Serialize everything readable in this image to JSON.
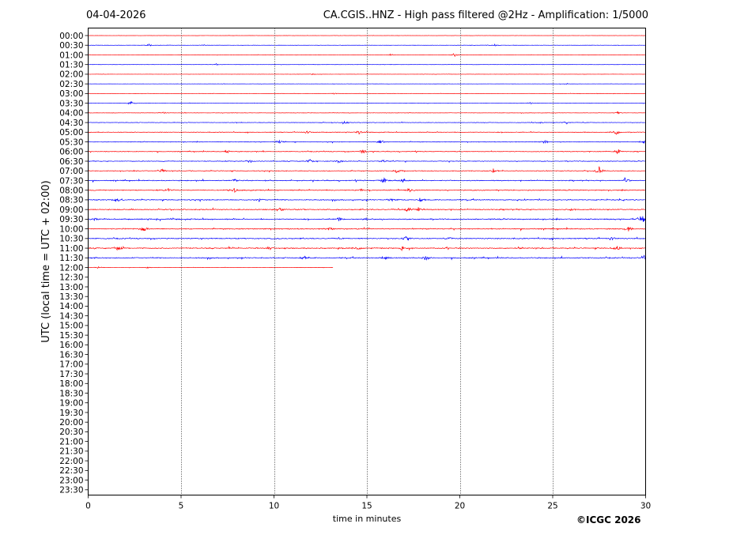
{
  "header": {
    "date": "04-04-2026",
    "title": "CA.CGIS..HNZ - High pass filtered @2Hz - Amplification: 1/5000"
  },
  "footer": {
    "copyright": "©ICGC 2026"
  },
  "chart_data": {
    "type": "helicorder",
    "xlabel": "time in minutes",
    "ylabel": "UTC (local time = UTC + 02:00)",
    "xlim": [
      0,
      30
    ],
    "x_ticks": [
      "0",
      "5",
      "10",
      "15",
      "20",
      "25",
      "30"
    ],
    "x_tick_values": [
      0,
      5,
      10,
      15,
      20,
      25,
      30
    ],
    "grid": "vertical dotted at 5-minute intervals",
    "row_labels": [
      "00:00",
      "00:30",
      "01:00",
      "01:30",
      "02:00",
      "02:30",
      "03:00",
      "03:30",
      "04:00",
      "04:30",
      "05:00",
      "05:30",
      "06:00",
      "06:30",
      "07:00",
      "07:30",
      "08:00",
      "08:30",
      "09:00",
      "09:30",
      "10:00",
      "10:30",
      "11:00",
      "11:30",
      "12:00",
      "12:30",
      "13:00",
      "13:30",
      "14:00",
      "14:30",
      "15:00",
      "15:30",
      "16:00",
      "16:30",
      "17:00",
      "17:30",
      "18:00",
      "18:30",
      "19:00",
      "19:30",
      "20:00",
      "20:30",
      "21:00",
      "21:30",
      "22:00",
      "22:30",
      "23:00",
      "23:30"
    ],
    "trace_colors": [
      "#ff0000",
      "#0000ff"
    ],
    "traces": [
      {
        "row": 0,
        "end_minute": 30,
        "activity": 0.1,
        "events": []
      },
      {
        "row": 1,
        "end_minute": 30,
        "activity": 0.12,
        "events": [
          [
            3.3,
            0.4
          ],
          [
            6.2,
            0.3
          ],
          [
            21.9,
            0.3
          ]
        ]
      },
      {
        "row": 2,
        "end_minute": 30,
        "activity": 0.12,
        "events": [
          [
            16.3,
            0.3
          ],
          [
            19.7,
            0.6
          ]
        ]
      },
      {
        "row": 3,
        "end_minute": 30,
        "activity": 0.1,
        "events": [
          [
            6.9,
            0.3
          ]
        ]
      },
      {
        "row": 4,
        "end_minute": 30,
        "activity": 0.1,
        "events": [
          [
            12.1,
            0.2
          ]
        ]
      },
      {
        "row": 5,
        "end_minute": 30,
        "activity": 0.1,
        "events": [
          [
            25.8,
            0.2
          ]
        ]
      },
      {
        "row": 6,
        "end_minute": 30,
        "activity": 0.12,
        "events": [
          [
            13.2,
            0.3
          ]
        ]
      },
      {
        "row": 7,
        "end_minute": 30,
        "activity": 0.14,
        "events": [
          [
            2.3,
            0.6
          ],
          [
            23.8,
            0.4
          ]
        ]
      },
      {
        "row": 8,
        "end_minute": 30,
        "activity": 0.16,
        "events": [
          [
            4.0,
            0.4
          ],
          [
            28.5,
            0.4
          ]
        ]
      },
      {
        "row": 9,
        "end_minute": 30,
        "activity": 0.22,
        "events": [
          [
            13.8,
            0.8
          ],
          [
            25.7,
            0.6
          ],
          [
            24.3,
            0.4
          ]
        ]
      },
      {
        "row": 10,
        "end_minute": 30,
        "activity": 0.28,
        "events": [
          [
            11.8,
            0.6
          ],
          [
            14.6,
            0.6
          ],
          [
            28.4,
            1.2
          ]
        ]
      },
      {
        "row": 11,
        "end_minute": 30,
        "activity": 0.3,
        "events": [
          [
            10.3,
            0.6
          ],
          [
            15.8,
            0.8
          ],
          [
            24.6,
            0.6
          ],
          [
            29.9,
            0.8
          ]
        ]
      },
      {
        "row": 12,
        "end_minute": 30,
        "activity": 0.32,
        "events": [
          [
            7.5,
            0.6
          ],
          [
            14.8,
            0.8
          ],
          [
            28.5,
            1.0
          ]
        ]
      },
      {
        "row": 13,
        "end_minute": 30,
        "activity": 0.32,
        "events": [
          [
            8.7,
            0.6
          ],
          [
            11.9,
            0.8
          ],
          [
            13.5,
            0.8
          ],
          [
            15.9,
            0.6
          ]
        ]
      },
      {
        "row": 14,
        "end_minute": 30,
        "activity": 0.34,
        "events": [
          [
            4.0,
            0.6
          ],
          [
            16.6,
            0.6
          ],
          [
            21.8,
            0.6
          ],
          [
            27.5,
            1.6
          ]
        ]
      },
      {
        "row": 15,
        "end_minute": 30,
        "activity": 0.42,
        "events": [
          [
            7.9,
            0.6
          ],
          [
            15.9,
            1.0
          ],
          [
            17.0,
            0.8
          ],
          [
            28.9,
            1.0
          ]
        ]
      },
      {
        "row": 16,
        "end_minute": 30,
        "activity": 0.42,
        "events": [
          [
            4.3,
            0.6
          ],
          [
            7.9,
            0.8
          ],
          [
            14.7,
            0.6
          ],
          [
            17.3,
            0.9
          ]
        ]
      },
      {
        "row": 17,
        "end_minute": 30,
        "activity": 0.44,
        "events": [
          [
            1.6,
            0.8
          ],
          [
            9.2,
            0.6
          ],
          [
            16.3,
            0.6
          ],
          [
            17.9,
            0.7
          ]
        ]
      },
      {
        "row": 18,
        "end_minute": 30,
        "activity": 0.46,
        "events": [
          [
            10.3,
            0.8
          ],
          [
            17.2,
            1.0
          ],
          [
            17.8,
            0.9
          ],
          [
            26.0,
            0.6
          ]
        ]
      },
      {
        "row": 19,
        "end_minute": 30,
        "activity": 0.48,
        "events": [
          [
            0.4,
            0.6
          ],
          [
            13.5,
            0.7
          ],
          [
            15.0,
            0.7
          ],
          [
            29.8,
            1.4
          ]
        ]
      },
      {
        "row": 20,
        "end_minute": 30,
        "activity": 0.46,
        "events": [
          [
            3.0,
            1.2
          ],
          [
            13.0,
            0.6
          ],
          [
            29.1,
            1.0
          ]
        ]
      },
      {
        "row": 21,
        "end_minute": 30,
        "activity": 0.46,
        "events": [
          [
            17.1,
            0.8
          ],
          [
            19.4,
            0.7
          ],
          [
            28.2,
            0.6
          ]
        ]
      },
      {
        "row": 22,
        "end_minute": 30,
        "activity": 0.48,
        "events": [
          [
            1.6,
            1.0
          ],
          [
            9.8,
            0.8
          ],
          [
            14.5,
            0.7
          ],
          [
            16.9,
            0.8
          ],
          [
            28.4,
            1.1
          ]
        ]
      },
      {
        "row": 23,
        "end_minute": 30,
        "activity": 0.48,
        "events": [
          [
            11.6,
            0.6
          ],
          [
            16.0,
            0.9
          ],
          [
            18.2,
            0.8
          ],
          [
            29.9,
            1.0
          ]
        ]
      },
      {
        "row": 24,
        "end_minute": 13.2,
        "activity": 0.16,
        "events": [
          [
            0.6,
            0.4
          ],
          [
            3.2,
            0.2
          ]
        ]
      }
    ]
  }
}
